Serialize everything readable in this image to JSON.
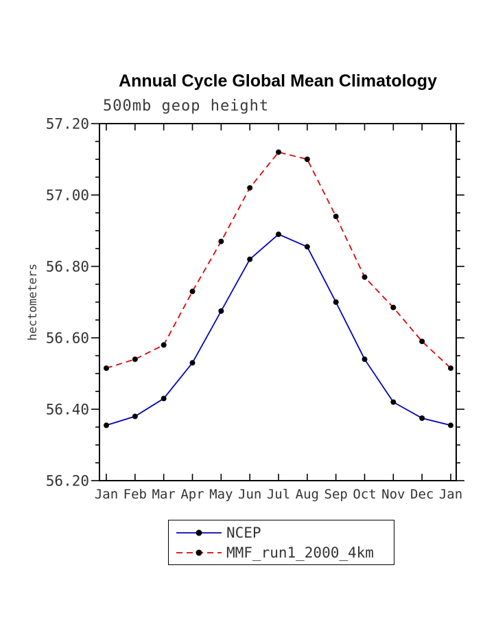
{
  "chart_data": {
    "type": "line",
    "title": "Annual Cycle Global Mean Climatology",
    "subtitle": "500mb geop height",
    "ylabel": "hectometers",
    "categories": [
      "Jan",
      "Feb",
      "Mar",
      "Apr",
      "May",
      "Jun",
      "Jul",
      "Aug",
      "Sep",
      "Oct",
      "Nov",
      "Dec",
      "Jan"
    ],
    "ylim": [
      56.2,
      57.2
    ],
    "ytick_step": 0.2,
    "ytick_minor_step": 0.05,
    "ytick_labels": [
      "56.20",
      "56.40",
      "56.60",
      "56.80",
      "57.00",
      "57.20"
    ],
    "grid": false,
    "legend_position": "bottom",
    "marker_color": "#000000",
    "series": [
      {
        "name": "NCEP",
        "color": "#0000bb",
        "dash": "solid",
        "marker": "circle",
        "values": [
          56.355,
          56.38,
          56.43,
          56.53,
          56.675,
          56.82,
          56.89,
          56.855,
          56.7,
          56.54,
          56.42,
          56.375,
          56.355
        ]
      },
      {
        "name": "MMF_run1_2000_4km",
        "color": "#dd0000",
        "dash": "dashed",
        "marker": "circle",
        "values": [
          56.515,
          56.54,
          56.58,
          56.73,
          56.87,
          57.02,
          57.12,
          57.1,
          56.94,
          56.77,
          56.685,
          56.59,
          56.515
        ]
      }
    ]
  }
}
